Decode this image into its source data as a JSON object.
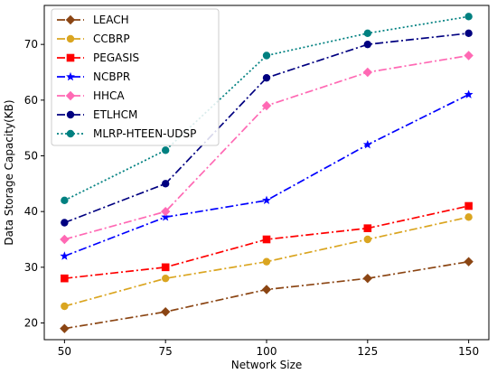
{
  "chart_data": {
    "type": "line",
    "xlabel": "Network Size",
    "ylabel": "Data Storage Capacity(KB)",
    "x": [
      50,
      75,
      100,
      125,
      150
    ],
    "xlim": [
      45,
      155
    ],
    "ylim": [
      17,
      77
    ],
    "yticks": [
      20,
      30,
      40,
      50,
      60,
      70
    ],
    "grid": false,
    "legend_position": "top-left",
    "series": [
      {
        "name": "LEACH",
        "values": [
          19,
          22,
          26,
          28,
          31
        ],
        "color": "#8B4513",
        "marker": "diamond",
        "linestyle": "dashdot"
      },
      {
        "name": "CCBRP",
        "values": [
          23,
          28,
          31,
          35,
          39
        ],
        "color": "#DAA520",
        "marker": "circle",
        "linestyle": "dashdot"
      },
      {
        "name": "PEGASIS",
        "values": [
          28,
          30,
          35,
          37,
          41
        ],
        "color": "#FF0000",
        "marker": "square",
        "linestyle": "dashdot"
      },
      {
        "name": "NCBPR",
        "values": [
          32,
          39,
          42,
          52,
          61
        ],
        "color": "#0000FF",
        "marker": "star",
        "linestyle": "dashdot"
      },
      {
        "name": "HHCA",
        "values": [
          35,
          40,
          59,
          65,
          68
        ],
        "color": "#FF69B4",
        "marker": "diamond",
        "linestyle": "dashdot"
      },
      {
        "name": "ETLHCM",
        "values": [
          38,
          45,
          64,
          70,
          72
        ],
        "color": "#000080",
        "marker": "circle",
        "linestyle": "dashdot"
      },
      {
        "name": "MLRP-HTEEN-UDSP",
        "values": [
          42,
          51,
          68,
          72,
          75
        ],
        "color": "#008080",
        "marker": "circle",
        "linestyle": "dotted"
      }
    ]
  }
}
